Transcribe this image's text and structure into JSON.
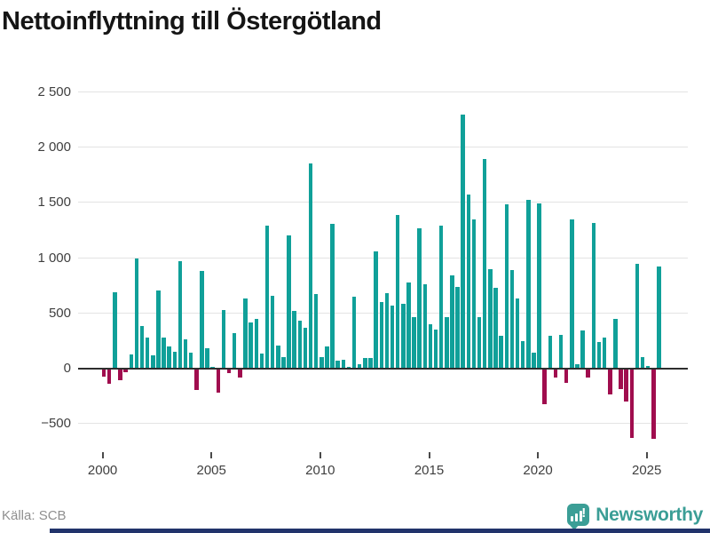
{
  "title": "Nettoinflyttning till Östergötland",
  "source": "Källa: SCB",
  "brand": {
    "name": "Newsworthy",
    "icon": "newsworthy-pin-icon"
  },
  "colors": {
    "positive": "#10a099",
    "negative": "#a00d4e",
    "gridline": "#e3e3e3",
    "zero_line": "#2e2e2e",
    "title_text": "#151515",
    "tick_text": "#3f3f3f",
    "source_text": "#8f8f8f",
    "brand_teal": "#3b9e96",
    "bottom_strip": "#21336b"
  },
  "chart_data": {
    "type": "bar",
    "title": "Nettoinflyttning till Östergötland",
    "frequency": "quarterly",
    "x_start": "2000-Q1",
    "x_end": "2025-Q3",
    "values": [
      -60,
      -130,
      680,
      -100,
      -27,
      120,
      985,
      375,
      275,
      110,
      700,
      270,
      190,
      145,
      965,
      260,
      140,
      -185,
      875,
      180,
      10,
      -210,
      520,
      -35,
      310,
      -70,
      625,
      410,
      445,
      125,
      1290,
      655,
      200,
      95,
      1200,
      515,
      425,
      365,
      1850,
      665,
      95,
      195,
      1300,
      65,
      70,
      10,
      640,
      35,
      90,
      85,
      1055,
      595,
      675,
      560,
      1385,
      575,
      770,
      455,
      1265,
      755,
      395,
      345,
      1290,
      455,
      835,
      730,
      2290,
      1565,
      1345,
      455,
      1885,
      890,
      720,
      290,
      1480,
      885,
      625,
      240,
      1520,
      140,
      1485,
      -310,
      290,
      -70,
      300,
      -120,
      1345,
      30,
      340,
      -75,
      1310,
      235,
      275,
      -225,
      440,
      -175,
      -290,
      -615,
      940,
      100,
      20,
      -630,
      915
    ],
    "yticks": [
      2500,
      2000,
      1500,
      1000,
      500,
      0,
      -500
    ],
    "ytick_labels": [
      "2 500",
      "2 000",
      "1 500",
      "1 000",
      "500",
      "0",
      "−500"
    ],
    "xtick_labels": [
      "2000",
      "2005",
      "2010",
      "2015",
      "2020",
      "2025"
    ],
    "ylim": [
      -500,
      2500
    ],
    "grid": true,
    "legend": false,
    "positive_color": "#10a099",
    "negative_color": "#a00d4e"
  }
}
